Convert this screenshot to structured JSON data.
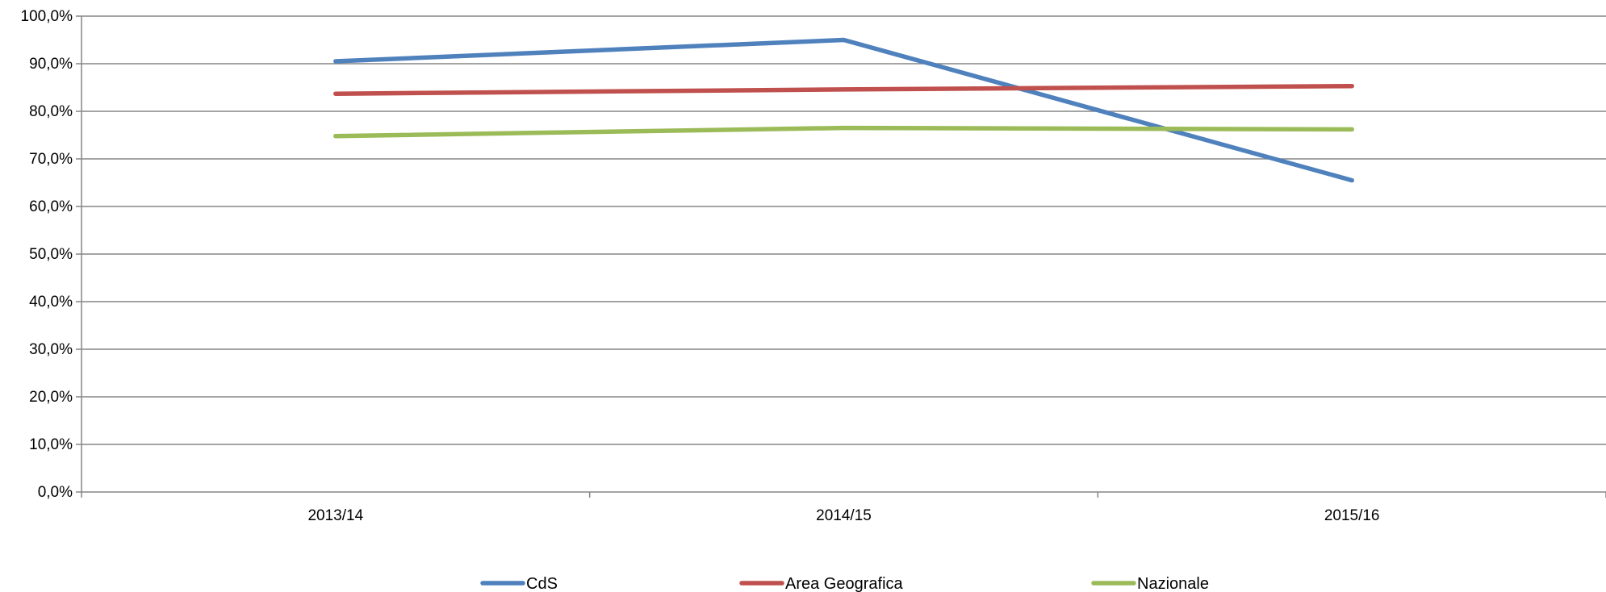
{
  "chart_data": {
    "type": "line",
    "title": "",
    "xlabel": "",
    "ylabel": "",
    "categories": [
      "2013/14",
      "2014/15",
      "2015/16"
    ],
    "ylim": [
      0,
      100
    ],
    "yticks": [
      "0,0%",
      "10,0%",
      "20,0%",
      "30,0%",
      "40,0%",
      "50,0%",
      "60,0%",
      "70,0%",
      "80,0%",
      "90,0%",
      "100,0%"
    ],
    "grid": true,
    "legend_position": "bottom",
    "series": [
      {
        "name": "CdS",
        "color": "#4F81BD",
        "values": [
          90.5,
          95.0,
          65.5
        ]
      },
      {
        "name": "Area Geografica",
        "color": "#C0504D",
        "values": [
          83.7,
          84.6,
          85.3
        ]
      },
      {
        "name": "Nazionale",
        "color": "#9BBB59",
        "values": [
          74.8,
          76.5,
          76.2
        ]
      }
    ]
  }
}
